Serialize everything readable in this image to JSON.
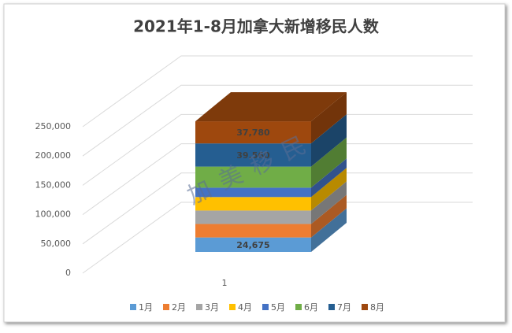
{
  "chart_data": {
    "type": "bar3d_stacked",
    "title": "2021年1-8月加拿大新增移民人数",
    "categories": [
      "1"
    ],
    "series": [
      {
        "name": "1月",
        "color": "#5b9bd5",
        "values": [
          24675
        ],
        "value_labels": [
          "24,675"
        ]
      },
      {
        "name": "2月",
        "color": "#ed7d31",
        "values": [
          23000
        ]
      },
      {
        "name": "3月",
        "color": "#a5a5a5",
        "values": [
          23000
        ]
      },
      {
        "name": "4月",
        "color": "#ffc000",
        "values": [
          23000
        ]
      },
      {
        "name": "5月",
        "color": "#4472c4",
        "values": [
          16000
        ]
      },
      {
        "name": "6月",
        "color": "#70ad47",
        "values": [
          36000
        ]
      },
      {
        "name": "7月",
        "color": "#255e91",
        "values": [
          39560
        ],
        "value_labels": [
          "39,560"
        ]
      },
      {
        "name": "8月",
        "color": "#9e480e",
        "values": [
          37780
        ],
        "value_labels": [
          "37,780"
        ]
      }
    ],
    "ylim": [
      0,
      250000
    ],
    "yticks": [
      0,
      {
        "value": 50000,
        "label": "50,000"
      },
      {
        "value": 100000,
        "label": "100,000"
      },
      {
        "value": 150000,
        "label": "150,000"
      },
      {
        "value": 200000,
        "label": "200,000"
      },
      {
        "value": 250000,
        "label": "250,000"
      }
    ],
    "grid": true,
    "legend": "bottom",
    "watermark": "加美移民"
  }
}
